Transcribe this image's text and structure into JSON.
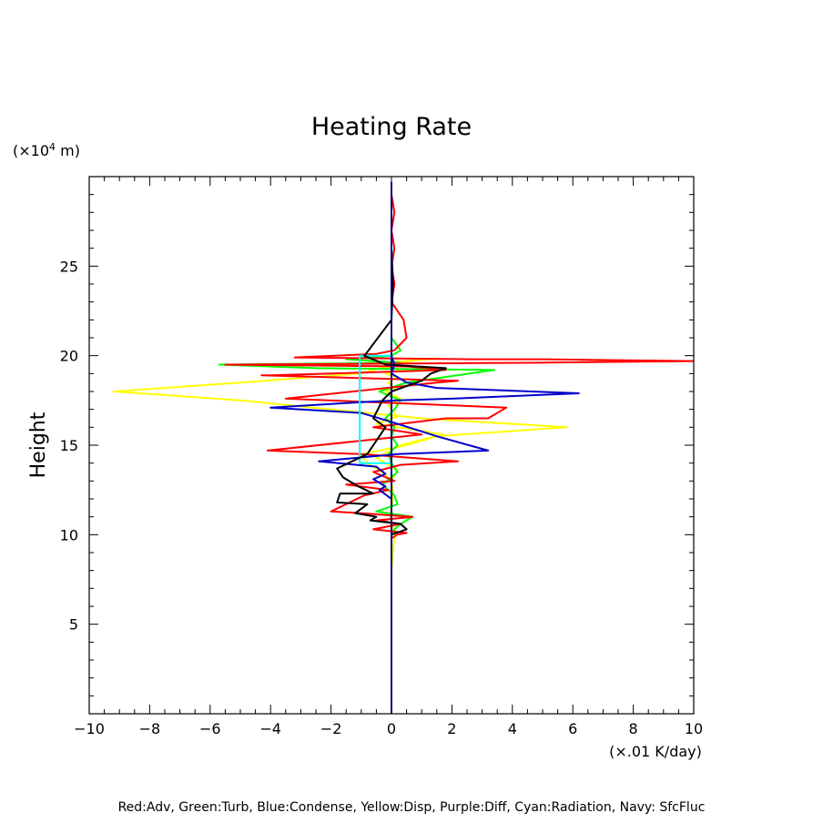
{
  "chart_data": {
    "type": "line",
    "title": "Heating Rate",
    "ylabel": "Height",
    "yunit_prefix": "(×10",
    "yunit_exp": "4",
    "yunit_suffix": " m)",
    "xunit": "(×.01 K/day)",
    "footer": "Red:Adv, Green:Turb, Blue:Condense, Yellow:Disp, Purple:Diff, Cyan:Radiation, Navy: SfcFluc",
    "xlim": [
      -10,
      10
    ],
    "ylim": [
      0,
      30
    ],
    "xticks": [
      -10,
      -8,
      -6,
      -4,
      -2,
      0,
      2,
      4,
      6,
      8,
      10
    ],
    "xtick_labels": [
      "−10",
      "−8",
      "−6",
      "−4",
      "−2",
      "0",
      "2",
      "4",
      "6",
      "8",
      "10"
    ],
    "yticks": [
      5,
      10,
      15,
      20,
      25
    ],
    "ytick_labels": [
      "5",
      "10",
      "15",
      "20",
      "25"
    ],
    "grid": false,
    "series": [
      {
        "name": "Yellow:Disp",
        "color": "#ffff00",
        "x": [
          0,
          0,
          0.05,
          0.1,
          0.05,
          -0.05,
          0,
          0.05,
          0.05,
          0,
          -0.3,
          -0.8,
          -1,
          0.5,
          1.5,
          5.8,
          1,
          -2,
          -5,
          -9.2,
          -5,
          -1,
          0,
          0.8,
          1.5,
          0.5,
          -0.3,
          0.2,
          -0.2,
          0.3,
          -0.2,
          0.2,
          -0.1,
          0.1,
          -0.2,
          0.3,
          -0.1,
          0.2,
          -0.5,
          1.7,
          0.3,
          -0.5,
          0.2,
          0,
          0,
          0,
          0
        ],
        "y": [
          7,
          8,
          9,
          10,
          10.5,
          11,
          11.5,
          12,
          12.5,
          13,
          13.5,
          14,
          14.5,
          15,
          15.5,
          16,
          16.5,
          17,
          17.5,
          18,
          18.5,
          19,
          19.5,
          19.75,
          19.85,
          19.7,
          19.6,
          19.5,
          19.4,
          19.2,
          19,
          18.8,
          18.5,
          18.2,
          18,
          17.6,
          17.2,
          16.6,
          16.2,
          15.6,
          15,
          14.3,
          13.6,
          13,
          12,
          11,
          10
        ]
      },
      {
        "name": "Green:Turb",
        "color": "#00ff00",
        "x": [
          0,
          0.1,
          0.3,
          0.7,
          -0.5,
          0.2,
          0.1,
          -0.3,
          0.2,
          0,
          -0.1,
          0.2,
          0,
          0.1,
          -0.2,
          0.1,
          0.3,
          -0.4,
          0.5,
          3.4,
          -2.5,
          -5.7,
          0.3,
          -1.5,
          0,
          0.3,
          0,
          0
        ],
        "y": [
          10,
          10.3,
          10.6,
          11,
          11.3,
          11.7,
          12.2,
          12.8,
          13.5,
          14,
          14.5,
          15,
          15.5,
          16,
          16.5,
          17,
          17.5,
          18,
          18.5,
          19.2,
          19.3,
          19.5,
          19.6,
          19.8,
          20,
          20.3,
          21,
          23
        ]
      },
      {
        "name": "Red:Adv",
        "color": "#ff0000",
        "x": [
          0,
          0,
          0.1,
          0,
          0.1,
          0,
          0.1,
          0,
          0.2,
          0.4,
          0.5,
          0.1,
          -0.5,
          -3.2,
          2.5,
          5,
          10,
          4.5,
          -5.5,
          0.5,
          1.8,
          -4,
          -4.3,
          2.2,
          1.5,
          -3.5,
          3.8,
          3.2,
          1.8,
          -0.6,
          1,
          -4.1,
          -1,
          2.2,
          0.3,
          -0.6,
          0.1,
          -1.5,
          -0.1,
          -0.9,
          -2,
          -1,
          0.7,
          -0.5,
          0.3,
          -0.6,
          0.5,
          0.2,
          0
        ],
        "y": [
          29.5,
          29,
          28,
          27,
          26,
          25,
          24,
          23,
          22.5,
          22,
          21,
          20.3,
          20.1,
          19.9,
          19.8,
          19.8,
          19.7,
          19.6,
          19.5,
          19.4,
          19.2,
          18.9,
          18.9,
          18.6,
          18.5,
          17.6,
          17.1,
          16.5,
          16.5,
          16.0,
          15.6,
          14.7,
          14.5,
          14.1,
          13.9,
          13.5,
          13.0,
          12.8,
          12.5,
          12.2,
          11.3,
          11.2,
          11.0,
          10.8,
          10.6,
          10.3,
          10.1,
          10.0,
          9.8
        ]
      },
      {
        "name": "Blue:Condense",
        "color": "#0000cc",
        "x": [
          0,
          0.1,
          0,
          0.5,
          1.5,
          6.2,
          2,
          0.2,
          -1,
          -4,
          -1,
          0,
          1.5,
          3.2,
          0.2,
          -2.4,
          -0.5,
          -0.2,
          -0.6,
          -0.2,
          -0.4,
          0,
          0
        ],
        "y": [
          20,
          19.5,
          19,
          18.5,
          18.2,
          17.9,
          17.6,
          17.5,
          17.4,
          17.1,
          16.8,
          16.3,
          15.5,
          14.7,
          14.5,
          14.1,
          13.8,
          13.4,
          13.1,
          12.7,
          12.5,
          12,
          10
        ]
      },
      {
        "name": "Cyan:Radiation",
        "color": "#00ffff",
        "x": [
          0,
          -1.05,
          -1.05,
          0
        ],
        "y": [
          20,
          20,
          14,
          14
        ]
      },
      {
        "name": "Black",
        "color": "#000000",
        "x": [
          0,
          0,
          0.05,
          0,
          -0.8,
          -0.9,
          -0.2,
          1.8,
          1.3,
          1.0,
          0,
          -0.3,
          -0.6,
          -0.2,
          -0.4,
          -0.8,
          -1.8,
          -1.6,
          -1.1,
          -0.6,
          -1.7,
          -1.8,
          -0.8,
          -1.2,
          -0.5,
          -0.7,
          0.3,
          0.5,
          0,
          0
        ],
        "y": [
          29.5,
          26,
          24,
          22,
          20.2,
          20,
          19.5,
          19.3,
          19,
          18.6,
          18,
          17.5,
          16.5,
          16,
          15.5,
          14.5,
          13.7,
          13.2,
          12.7,
          12.3,
          12.3,
          11.8,
          11.7,
          11.2,
          11,
          10.8,
          10.6,
          10.3,
          10,
          7
        ]
      },
      {
        "name": "Navy: SfcFluc",
        "color": "#000080",
        "x": [
          0,
          0
        ],
        "y": [
          0,
          29.7
        ]
      }
    ]
  }
}
